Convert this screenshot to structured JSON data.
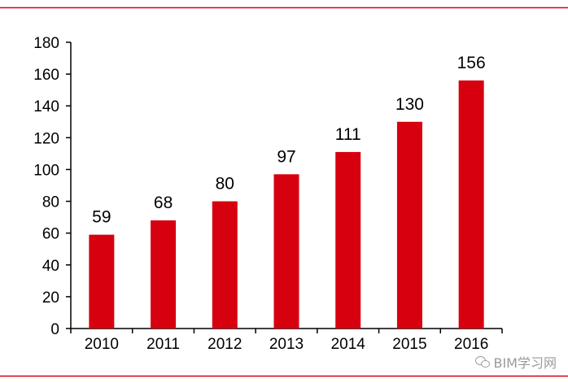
{
  "chart_data": {
    "type": "bar",
    "categories": [
      "2010",
      "2011",
      "2012",
      "2013",
      "2014",
      "2015",
      "2016"
    ],
    "values": [
      59,
      68,
      80,
      97,
      111,
      130,
      156
    ],
    "data_labels": [
      "59",
      "68",
      "80",
      "97",
      "111",
      "130",
      "156"
    ],
    "y_ticks": [
      "0",
      "20",
      "40",
      "60",
      "80",
      "100",
      "120",
      "140",
      "160",
      "180"
    ],
    "ylim": [
      0,
      180
    ],
    "y_step": 20,
    "title": "",
    "xlabel": "",
    "ylabel": "",
    "grid": false,
    "bar_color": "#d7000f",
    "frame_line_color": "#d7000f"
  },
  "watermark": {
    "text": "BIM学习网",
    "icon": "wechat-icon"
  }
}
